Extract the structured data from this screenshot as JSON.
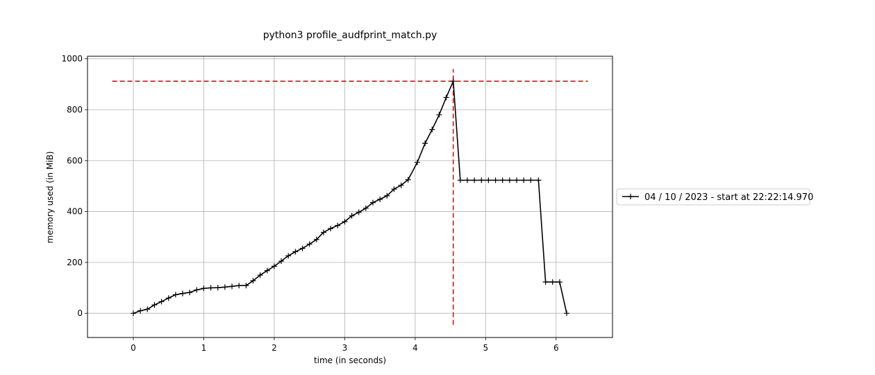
{
  "chart_data": {
    "type": "line",
    "title": "python3 profile_audfprint_match.py",
    "xlabel": "time (in seconds)",
    "ylabel": "memory used (in MiB)",
    "xlim": [
      -0.65,
      6.8
    ],
    "ylim": [
      -95,
      1010
    ],
    "x_ticks": [
      0,
      1,
      2,
      3,
      4,
      5,
      6
    ],
    "y_ticks": [
      0,
      200,
      400,
      600,
      800,
      1000
    ],
    "grid": true,
    "legend": {
      "placement": "right",
      "entries": [
        "04 / 10 / 2023 - start at 22:22:14.970"
      ]
    },
    "series": [
      {
        "name": "04 / 10 / 2023 - start at 22:22:14.970",
        "color": "#000000",
        "marker": "+",
        "x": [
          0.0,
          0.1,
          0.2,
          0.3,
          0.4,
          0.5,
          0.6,
          0.7,
          0.8,
          0.9,
          1.0,
          1.1,
          1.2,
          1.3,
          1.4,
          1.5,
          1.6,
          1.7,
          1.8,
          1.9,
          2.0,
          2.1,
          2.2,
          2.3,
          2.4,
          2.5,
          2.6,
          2.7,
          2.8,
          2.9,
          3.0,
          3.1,
          3.2,
          3.3,
          3.4,
          3.5,
          3.6,
          3.7,
          3.8,
          3.9,
          4.03,
          4.14,
          4.24,
          4.34,
          4.44,
          4.54,
          4.64,
          4.74,
          4.84,
          4.94,
          5.04,
          5.14,
          5.24,
          5.34,
          5.44,
          5.54,
          5.64,
          5.75,
          5.85,
          5.95,
          6.05,
          6.15
        ],
        "y": [
          0,
          10,
          16,
          33,
          46,
          60,
          73,
          78,
          82,
          92,
          98,
          100,
          101,
          103,
          106,
          109,
          109,
          128,
          150,
          168,
          185,
          205,
          226,
          242,
          255,
          272,
          290,
          318,
          333,
          345,
          360,
          383,
          397,
          413,
          435,
          448,
          462,
          488,
          503,
          525,
          593,
          668,
          722,
          780,
          848,
          912,
          523,
          523,
          523,
          523,
          523,
          523,
          523,
          523,
          523,
          523,
          523,
          523,
          123,
          123,
          123,
          0
        ]
      }
    ],
    "max_marker": {
      "x": 4.54,
      "y": 912,
      "color": "#ff0000",
      "line_style": "dashed"
    }
  }
}
